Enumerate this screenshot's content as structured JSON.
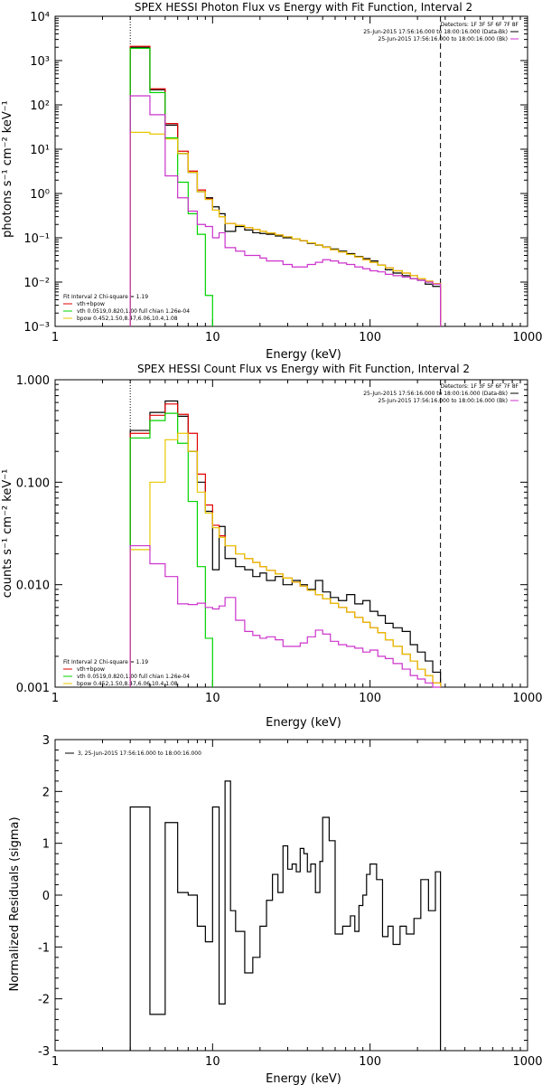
{
  "colors": {
    "data": "#000000",
    "total": "#e00000",
    "vth": "#00d400",
    "bpow": "#e8c800",
    "background": "#cc33cc",
    "axis": "#000000"
  },
  "chart_data": [
    {
      "type": "line",
      "style": "histogram",
      "title": "SPEX HESSI Photon Flux vs Energy with Fit Function, Interval 2",
      "xlabel": "Energy (keV)",
      "ylabel": "photons s⁻¹ cm⁻² keV⁻¹",
      "xscale": "log",
      "yscale": "log",
      "xlim": [
        1,
        1000
      ],
      "ylim": [
        0.001,
        10000
      ],
      "x_tick_labels": [
        "1",
        "10",
        "100",
        "1000"
      ],
      "y_tick_labels": [
        "10⁻³",
        "10⁻²",
        "10⁻¹",
        "10⁰",
        "10¹",
        "10²",
        "10³",
        "10⁴"
      ],
      "vlines": [
        {
          "x": 3,
          "style": "dotted"
        },
        {
          "x": 280,
          "style": "dashed"
        }
      ],
      "legend_top": [
        "Detectors: 1F 3F 5F 6F 7F 8F",
        "25-Jun-2015 17:56:16.000 to 18:00:16.000 (Data-Bk)",
        "25-Jun-2015 17:56:16.000 to 18:00:16.000 (Bk)"
      ],
      "legend_top_colors": [
        "",
        "data",
        "background"
      ],
      "legend_fit_header": "Fit Interval 2   Chi-square = 1.19",
      "legend_fit": [
        "vth+bpow",
        "vth 0.0519,0.820,1.00  full chian 1.26e-04",
        "bpow 0.452,1.50,8.47,6.06,10.4,1.08"
      ],
      "legend_fit_colors": [
        "total",
        "vth",
        "bpow"
      ],
      "series": [
        {
          "key": "data",
          "edges": [
            3,
            4,
            5,
            6,
            7,
            8,
            9,
            10,
            11,
            12,
            14,
            16,
            18,
            20,
            22,
            25,
            28,
            32,
            36,
            40,
            45,
            50,
            56,
            63,
            71,
            80,
            90,
            100,
            112,
            125,
            140,
            160,
            180,
            200,
            224,
            250,
            280
          ],
          "values": [
            2000,
            220,
            35,
            8,
            3,
            1.1,
            0.8,
            0.5,
            0.35,
            0.14,
            0.18,
            0.15,
            0.13,
            0.125,
            0.12,
            0.11,
            0.1,
            0.095,
            0.085,
            0.075,
            0.068,
            0.062,
            0.056,
            0.05,
            0.044,
            0.038,
            0.034,
            0.03,
            0.024,
            0.019,
            0.016,
            0.014,
            0.012,
            0.011,
            0.009,
            0.008
          ]
        },
        {
          "key": "total",
          "edges": [
            3,
            4,
            5,
            6,
            7,
            8,
            9,
            10,
            11,
            12,
            14,
            16,
            18,
            20,
            22,
            25,
            28,
            32,
            36,
            40,
            45,
            50,
            56,
            63,
            71,
            80,
            90,
            100,
            112,
            125,
            140,
            160,
            180,
            200,
            224,
            250,
            280
          ],
          "values": [
            2100,
            230,
            38,
            9,
            3.2,
            1.2,
            0.75,
            0.42,
            0.3,
            0.21,
            0.19,
            0.17,
            0.155,
            0.14,
            0.128,
            0.116,
            0.105,
            0.095,
            0.086,
            0.077,
            0.069,
            0.061,
            0.054,
            0.048,
            0.042,
            0.037,
            0.032,
            0.028,
            0.024,
            0.021,
            0.018,
            0.016,
            0.014,
            0.012,
            0.0105,
            0.0093
          ]
        },
        {
          "key": "vth",
          "edges": [
            3,
            4,
            5,
            6,
            7,
            8,
            9,
            10
          ],
          "values": [
            1900,
            190,
            18,
            1.8,
            0.35,
            0.12,
            0.005
          ]
        },
        {
          "key": "bpow",
          "edges": [
            3,
            4,
            5,
            6,
            7,
            8,
            9,
            10,
            11,
            12,
            14,
            16,
            18,
            20,
            22,
            25,
            28,
            32,
            36,
            40,
            45,
            50,
            56,
            63,
            71,
            80,
            90,
            100,
            112,
            125,
            140,
            160,
            180,
            200,
            224,
            250,
            280
          ],
          "values": [
            24,
            22,
            17,
            8,
            3,
            1.1,
            0.73,
            0.42,
            0.3,
            0.21,
            0.19,
            0.17,
            0.155,
            0.14,
            0.128,
            0.116,
            0.105,
            0.095,
            0.086,
            0.077,
            0.069,
            0.061,
            0.054,
            0.048,
            0.042,
            0.037,
            0.032,
            0.028,
            0.024,
            0.021,
            0.018,
            0.016,
            0.014,
            0.012,
            0.0105,
            0.0093
          ]
        },
        {
          "key": "background",
          "edges": [
            3,
            4,
            5,
            6,
            7,
            8,
            9,
            10,
            11,
            12,
            14,
            16,
            18,
            20,
            22,
            25,
            28,
            32,
            36,
            40,
            45,
            50,
            56,
            63,
            71,
            80,
            90,
            100,
            112,
            125,
            140,
            160,
            180,
            200,
            224,
            250,
            280
          ],
          "values": [
            160,
            60,
            2.5,
            0.8,
            0.4,
            0.2,
            0.18,
            0.1,
            0.13,
            0.06,
            0.05,
            0.04,
            0.04,
            0.035,
            0.03,
            0.03,
            0.025,
            0.022,
            0.022,
            0.025,
            0.028,
            0.032,
            0.03,
            0.027,
            0.025,
            0.022,
            0.02,
            0.018,
            0.017,
            0.015,
            0.014,
            0.013,
            0.012,
            0.011,
            0.01,
            0.009
          ]
        }
      ]
    },
    {
      "type": "line",
      "style": "histogram",
      "title": "SPEX HESSI Count Flux vs Energy with Fit Function, Interval 2",
      "xlabel": "Energy (keV)",
      "ylabel": "counts s⁻¹ cm⁻² keV⁻¹",
      "xscale": "log",
      "yscale": "log",
      "xlim": [
        1,
        1000
      ],
      "ylim": [
        0.001,
        1.0
      ],
      "x_tick_labels": [
        "1",
        "10",
        "100",
        "1000"
      ],
      "y_tick_labels": [
        "0.001",
        "0.010",
        "0.100",
        "1.000"
      ],
      "vlines": [
        {
          "x": 3,
          "style": "dotted"
        },
        {
          "x": 280,
          "style": "dashed"
        }
      ],
      "legend_top": [
        "Detectors: 1F 3F 5F 6F 7F 8F",
        "25-Jun-2015 17:56:16.000 to 18:00:16.000 (Data-Bk)",
        "25-Jun-2015 17:56:16.000 to 18:00:16.000 (Bk)"
      ],
      "legend_top_colors": [
        "",
        "data",
        "background"
      ],
      "legend_fit_header": "Fit Interval 2   Chi-square = 1.19",
      "legend_fit": [
        "vth+bpow",
        "vth 0.0519,0.820,1.00  full chian 1.26e-04",
        "bpow 0.452,1.50,8.47,6.06,10.4,1.08"
      ],
      "legend_fit_colors": [
        "total",
        "vth",
        "bpow"
      ],
      "series": [
        {
          "key": "data",
          "edges": [
            3,
            4,
            5,
            6,
            7,
            8,
            9,
            10,
            11,
            12,
            14,
            16,
            18,
            20,
            22,
            25,
            28,
            32,
            36,
            40,
            45,
            50,
            56,
            63,
            71,
            80,
            90,
            100,
            112,
            125,
            140,
            160,
            180,
            200,
            224,
            250,
            280
          ],
          "values": [
            0.32,
            0.48,
            0.62,
            0.44,
            0.2,
            0.1,
            0.052,
            0.014,
            0.037,
            0.018,
            0.015,
            0.014,
            0.012,
            0.013,
            0.011,
            0.012,
            0.01,
            0.011,
            0.01,
            0.009,
            0.011,
            0.0085,
            0.0075,
            0.007,
            0.008,
            0.0065,
            0.007,
            0.0055,
            0.005,
            0.0042,
            0.0038,
            0.0035,
            0.0026,
            0.0022,
            0.0018,
            0.0014
          ]
        },
        {
          "key": "total",
          "edges": [
            3,
            4,
            5,
            6,
            7,
            8,
            9,
            10,
            11,
            12,
            14,
            16,
            18,
            20,
            22,
            25,
            28,
            32,
            36,
            40,
            45,
            50,
            56,
            63,
            71,
            80,
            90,
            100,
            112,
            125,
            140,
            160,
            180,
            200,
            224,
            250,
            280
          ],
          "values": [
            0.3,
            0.45,
            0.58,
            0.46,
            0.3,
            0.12,
            0.06,
            0.038,
            0.03,
            0.024,
            0.02,
            0.018,
            0.0165,
            0.015,
            0.0138,
            0.0127,
            0.0116,
            0.0106,
            0.0097,
            0.0088,
            0.008,
            0.0073,
            0.0066,
            0.006,
            0.0054,
            0.0048,
            0.0043,
            0.0038,
            0.0034,
            0.0029,
            0.0025,
            0.0021,
            0.0018,
            0.0015,
            0.0013,
            0.0011
          ]
        },
        {
          "key": "vth",
          "edges": [
            3,
            4,
            5,
            6,
            7,
            8,
            9,
            10
          ],
          "values": [
            0.27,
            0.4,
            0.47,
            0.24,
            0.065,
            0.015,
            0.003
          ]
        },
        {
          "key": "bpow",
          "edges": [
            3,
            4,
            5,
            6,
            7,
            8,
            9,
            10,
            11,
            12,
            14,
            16,
            18,
            20,
            22,
            25,
            28,
            32,
            36,
            40,
            45,
            50,
            56,
            63,
            71,
            80,
            90,
            100,
            112,
            125,
            140,
            160,
            180,
            200,
            224,
            250,
            280
          ],
          "values": [
            0.022,
            0.1,
            0.26,
            0.3,
            0.2,
            0.08,
            0.05,
            0.036,
            0.029,
            0.024,
            0.02,
            0.018,
            0.0165,
            0.015,
            0.0138,
            0.0127,
            0.0116,
            0.0106,
            0.0097,
            0.0088,
            0.008,
            0.0073,
            0.0066,
            0.006,
            0.0054,
            0.0048,
            0.0043,
            0.0038,
            0.0034,
            0.0029,
            0.0025,
            0.0021,
            0.0018,
            0.0015,
            0.0013,
            0.0011
          ]
        },
        {
          "key": "background",
          "edges": [
            3,
            4,
            5,
            6,
            7,
            8,
            9,
            10,
            11,
            12,
            14,
            16,
            18,
            20,
            22,
            25,
            28,
            32,
            36,
            40,
            45,
            50,
            56,
            63,
            71,
            80,
            90,
            100,
            112,
            125,
            140,
            160,
            180,
            200,
            224,
            250,
            280
          ],
          "values": [
            0.024,
            0.016,
            0.012,
            0.0065,
            0.0064,
            0.0066,
            0.006,
            0.0058,
            0.0062,
            0.0075,
            0.0045,
            0.0035,
            0.0032,
            0.003,
            0.0031,
            0.0029,
            0.0025,
            0.0025,
            0.0027,
            0.0031,
            0.0036,
            0.0033,
            0.0028,
            0.0026,
            0.0025,
            0.0024,
            0.0022,
            0.0023,
            0.002,
            0.0019,
            0.0017,
            0.0015,
            0.0013,
            0.0012,
            0.0011,
            0.001
          ]
        }
      ]
    },
    {
      "type": "line",
      "style": "histogram",
      "title": "",
      "xlabel": "Energy (keV)",
      "ylabel": "Normalized Residuals (sigma)",
      "xscale": "log",
      "yscale": "linear",
      "xlim": [
        1,
        1000
      ],
      "ylim": [
        -3,
        3
      ],
      "x_tick_labels": [
        "1",
        "10",
        "100",
        "1000"
      ],
      "y_tick_labels": [
        "-3",
        "-2",
        "-1",
        "0",
        "1",
        "2",
        "3"
      ],
      "legend_top": [
        "3, 25-Jun-2015 17:56:16.000 to 18:00:16.000"
      ],
      "legend_top_colors": [
        "data"
      ],
      "series": [
        {
          "key": "data",
          "edges": [
            3,
            4,
            5,
            6,
            7,
            8,
            9,
            10,
            11,
            12,
            13,
            14,
            16,
            18,
            20,
            22,
            24,
            26,
            28,
            30,
            32,
            34,
            36,
            38,
            40,
            42,
            45,
            48,
            50,
            55,
            60,
            67,
            75,
            80,
            85,
            90,
            95,
            100,
            110,
            120,
            130,
            140,
            155,
            170,
            190,
            210,
            235,
            260,
            280
          ],
          "values": [
            1.7,
            -2.3,
            1.4,
            0.05,
            0.0,
            -0.6,
            -0.9,
            1.7,
            -2.1,
            2.2,
            -0.3,
            -0.7,
            -1.5,
            -1.2,
            -0.6,
            -0.1,
            0.4,
            0.05,
            0.95,
            0.5,
            0.6,
            0.45,
            0.9,
            0.8,
            0.45,
            0.6,
            0.05,
            0.65,
            1.5,
            1.05,
            -0.75,
            -0.6,
            -0.4,
            -0.7,
            -0.2,
            0.0,
            0.4,
            0.6,
            0.3,
            -0.8,
            -0.6,
            -0.95,
            -0.6,
            -0.75,
            -0.45,
            0.3,
            -0.3,
            0.45
          ]
        }
      ]
    }
  ]
}
